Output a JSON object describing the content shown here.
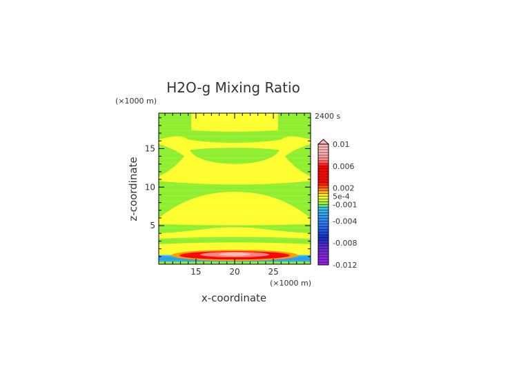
{
  "chart_data": {
    "type": "heatmap",
    "title": "H2O-g Mixing Ratio",
    "xlabel": "x-coordinate",
    "ylabel": "z-coordinate",
    "x_unit": "(×1000 m)",
    "y_unit": "(×1000 m)",
    "time_label": "2400 s",
    "xlim": [
      10.2,
      29.8
    ],
    "ylim": [
      0,
      19.6
    ],
    "x_ticks": [
      15,
      20,
      25
    ],
    "y_ticks": [
      5,
      10,
      15
    ],
    "colorbar": {
      "tick_labels": [
        "0.01",
        "0.006",
        "0.002",
        "5e-4",
        "-0.001",
        "-0.004",
        "-0.008",
        "-0.012"
      ],
      "tick_values": [
        0.01,
        0.006,
        0.002,
        0.0005,
        -0.001,
        -0.004,
        -0.008,
        -0.012
      ],
      "range": [
        -0.012,
        0.01
      ],
      "colors": {
        "magenta_low": "#a020f0",
        "purple": "#6a2bd0",
        "dark_blue": "#1030c0",
        "blue": "#2a6cf0",
        "cyan_blue": "#2aa0f0",
        "cyan": "#38c8e8",
        "green": "#90ee30",
        "yellow_green": "#d8f020",
        "yellow": "#ffff30",
        "orange": "#ff9a00",
        "red": "#ff0000",
        "pink": "#ff8080",
        "light_pink": "#ffb8b8"
      }
    },
    "regions": [
      {
        "name": "background",
        "value": -0.0005,
        "color": "#90ee30"
      },
      {
        "name": "top-band",
        "value": 0.0003,
        "color": "#ffff30"
      },
      {
        "name": "upper-layer",
        "value": 0.0003,
        "color": "#ffff30"
      },
      {
        "name": "middle-layer",
        "value": 0.0003,
        "color": "#ffff30"
      },
      {
        "name": "lower-layer",
        "value": 0.0003,
        "color": "#ffff30"
      },
      {
        "name": "surface-maximum",
        "value": 0.009,
        "color": "#ff0000"
      },
      {
        "name": "surface-minimum",
        "value": -0.003,
        "color": "#2aa0f0"
      }
    ]
  }
}
